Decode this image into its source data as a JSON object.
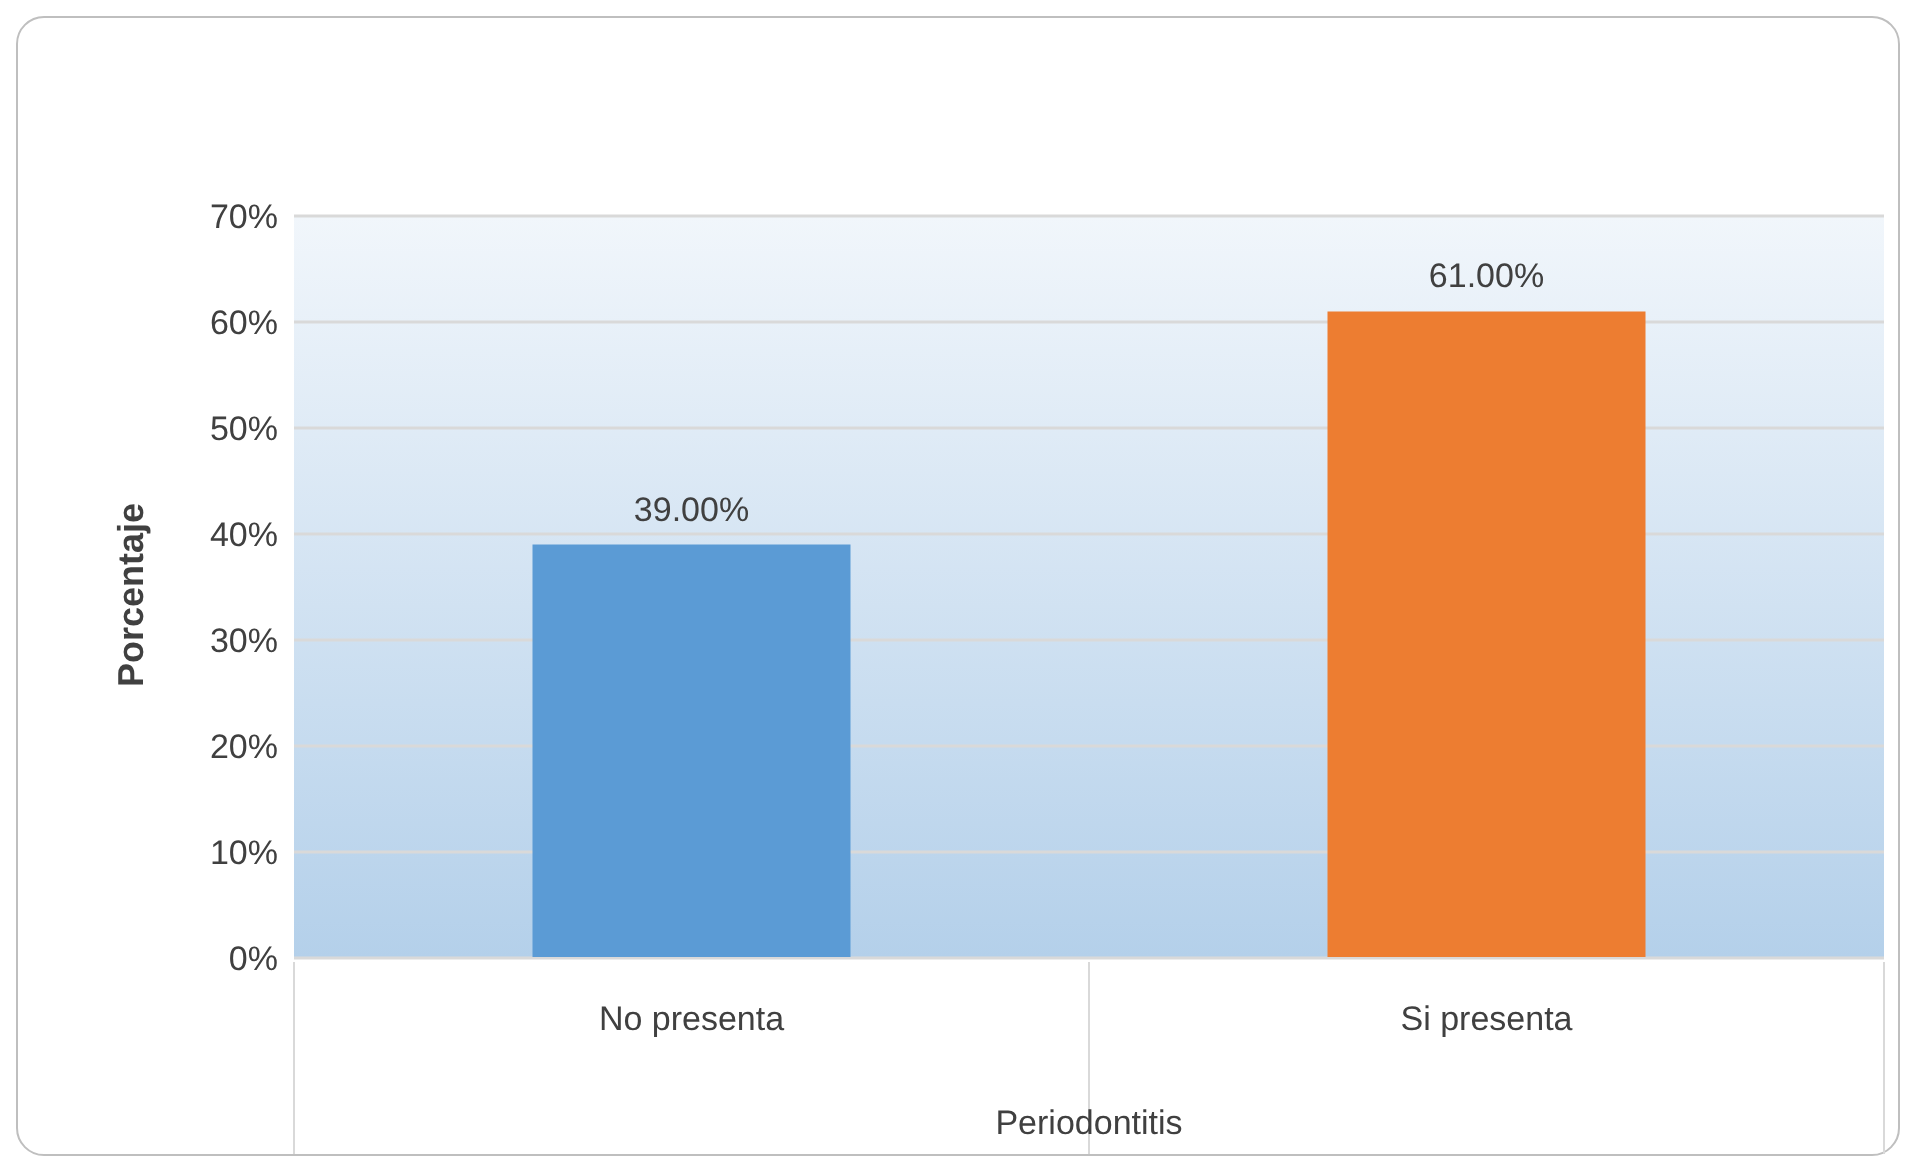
{
  "chart_data": {
    "type": "bar",
    "xlabel": "Periodontitis",
    "ylabel": "Porcentaje",
    "categories": [
      "No presenta",
      "Si presenta"
    ],
    "values": [
      39,
      61
    ],
    "colors": [
      "#5b9bd5",
      "#ed7d31"
    ],
    "value_labels": [
      "39.00%",
      "61.00%"
    ],
    "ylim": [
      0,
      70
    ],
    "yticks": [
      {
        "value": 0,
        "label": "0%"
      },
      {
        "value": 10,
        "label": "10%"
      },
      {
        "value": 20,
        "label": "20%"
      },
      {
        "value": 30,
        "label": "30%"
      },
      {
        "value": 40,
        "label": "40%"
      },
      {
        "value": 50,
        "label": "50%"
      },
      {
        "value": 60,
        "label": "60%"
      },
      {
        "value": 70,
        "label": "70%"
      }
    ],
    "grid": "y",
    "legend": false
  }
}
